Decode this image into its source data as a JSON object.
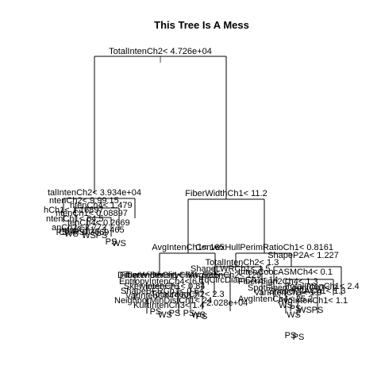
{
  "title": "This Tree Is A Mess",
  "splits": {
    "root": "TotalIntenCh2< 4.726e+04",
    "left": "talIntenCh2< 3.934e+04",
    "right": "FiberWidthCh1< 11.2",
    "right_left": "AvgIntenCh1< 165",
    "right_right": "ConvexHullPerimRatioCh1< 0.8161",
    "rr_right": "ShapeP2A< 1.227",
    "rr_left": "TotalIntenCh2< 1.3",
    "rl_left": "FiberWidthCh1< 7.4",
    "rl_right": "2.028e+04"
  },
  "left_cluster": [
    "ntenCh2< 9.99.15",
    "ntenCh4< 1.479",
    "hCh1< 1.16897",
    "ntenCh1< 0.08897",
    "ntenCh1< 64.5",
    "tenCh4< 0.2669",
    "anCh2< 2.772",
    "ntenCh1< 1.465",
    "Ch4< 0.3669"
  ],
  "left_leaves": [
    "PS",
    "WS",
    "PS",
    "WS",
    "PS",
    "PS",
    "WS"
  ],
  "rl_cluster": [
    "DiffIntenDensityCh4< 52.5",
    "EntropyIntenCh4< 6.1",
    "SkewIntenCh1< 0.84",
    "ShapeBFRCh1< 0.64",
    "VarIntenCh4< 68.2",
    "NeighborMinDistCh1< 24",
    "KurtIntenCh3< 1.4",
    "TotalIntenCh2< 2.3"
  ],
  "rl_leaves": [
    "PS",
    "WS",
    "PS",
    "PS",
    "WS",
    "PS"
  ],
  "rr_cluster": [
    "ShapeLWRCh1< 1.5",
    "AvgIntenCh2< 129",
    "EqCircDiamCh1< 14",
    "IntenCoocASMCh4< 0.1",
    "FiberAlign2Ch4< 1.3",
    "SpotFiberCountCh3< 2",
    "VarIntenCh1< 1.9",
    "AvgIntenCh4< 25.2",
    "ShapeP2ACh1< 1.3",
    "TotalIntenCh1< 2.4",
    "AvgIntenCh1< 1.1"
  ],
  "rr_leaves": [
    "WS",
    "PS",
    "WS",
    "PS",
    "WS",
    "PS",
    "PS"
  ]
}
